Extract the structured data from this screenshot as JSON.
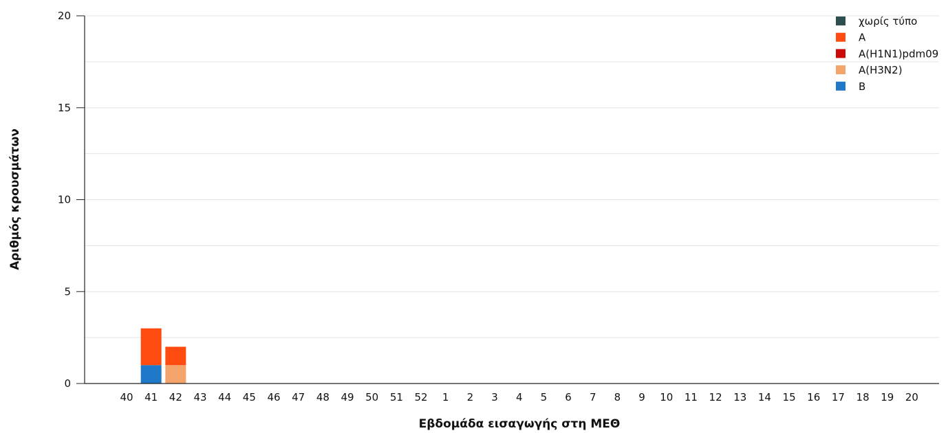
{
  "chart_data": {
    "type": "bar",
    "stacked": true,
    "title": "",
    "xlabel": "Εβδομάδα εισαγωγής στη ΜΕΘ",
    "ylabel": "Αριθμός κρουσμάτων",
    "ylim": [
      0,
      20
    ],
    "yticks": [
      0,
      5,
      10,
      15,
      20
    ],
    "grid": true,
    "legend_position": "top-right",
    "categories": [
      "40",
      "41",
      "42",
      "43",
      "44",
      "45",
      "46",
      "47",
      "48",
      "49",
      "50",
      "51",
      "52",
      "1",
      "2",
      "3",
      "4",
      "5",
      "6",
      "7",
      "8",
      "9",
      "10",
      "11",
      "12",
      "13",
      "14",
      "15",
      "16",
      "17",
      "18",
      "19",
      "20"
    ],
    "series": [
      {
        "name": "χωρίς τύπο",
        "color": "#2f4f4f",
        "values": [
          0,
          0,
          0,
          0,
          0,
          0,
          0,
          0,
          0,
          0,
          0,
          0,
          0,
          0,
          0,
          0,
          0,
          0,
          0,
          0,
          0,
          0,
          0,
          0,
          0,
          0,
          0,
          0,
          0,
          0,
          0,
          0,
          0
        ]
      },
      {
        "name": "A",
        "color": "#ff4b10",
        "values": [
          0,
          2,
          1,
          0,
          0,
          0,
          0,
          0,
          0,
          0,
          0,
          0,
          0,
          0,
          0,
          0,
          0,
          0,
          0,
          0,
          0,
          0,
          0,
          0,
          0,
          0,
          0,
          0,
          0,
          0,
          0,
          0,
          0
        ]
      },
      {
        "name": "A(H1N1)pdm09",
        "color": "#cc0a0a",
        "values": [
          0,
          0,
          0,
          0,
          0,
          0,
          0,
          0,
          0,
          0,
          0,
          0,
          0,
          0,
          0,
          0,
          0,
          0,
          0,
          0,
          0,
          0,
          0,
          0,
          0,
          0,
          0,
          0,
          0,
          0,
          0,
          0,
          0
        ]
      },
      {
        "name": "A(H3N2)",
        "color": "#f4a46a",
        "values": [
          0,
          0,
          1,
          0,
          0,
          0,
          0,
          0,
          0,
          0,
          0,
          0,
          0,
          0,
          0,
          0,
          0,
          0,
          0,
          0,
          0,
          0,
          0,
          0,
          0,
          0,
          0,
          0,
          0,
          0,
          0,
          0,
          0
        ]
      },
      {
        "name": "B",
        "color": "#1f78c8",
        "values": [
          0,
          1,
          0,
          0,
          0,
          0,
          0,
          0,
          0,
          0,
          0,
          0,
          0,
          0,
          0,
          0,
          0,
          0,
          0,
          0,
          0,
          0,
          0,
          0,
          0,
          0,
          0,
          0,
          0,
          0,
          0,
          0,
          0
        ]
      }
    ],
    "stack_order": [
      "B",
      "A(H3N2)",
      "A(H1N1)pdm09",
      "A",
      "χωρίς τύπο"
    ]
  }
}
